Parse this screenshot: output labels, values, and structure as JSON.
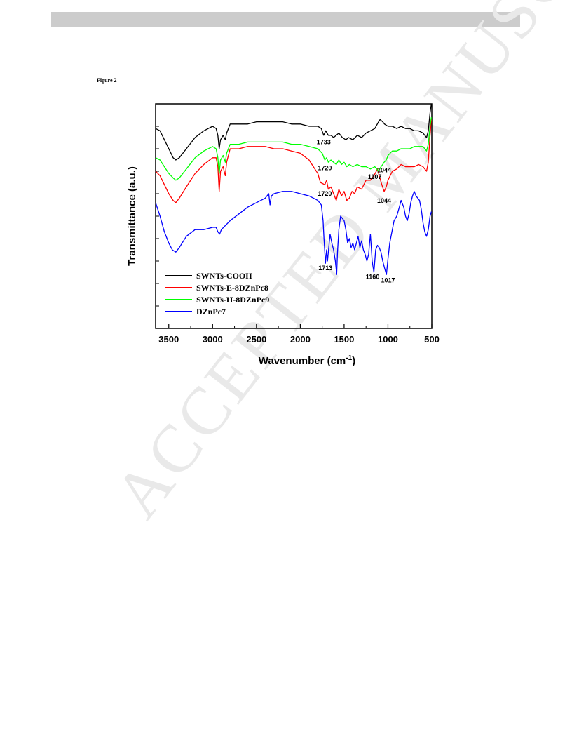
{
  "page": {
    "figure_label": "Figure 2",
    "watermark": "ACCEPTED MANUSCRIPT"
  },
  "chart_data": {
    "type": "line",
    "title": "",
    "xlabel_main": "Wavenumber (cm",
    "xlabel_sup": "-1",
    "xlabel_close": ")",
    "ylabel": "Transmittance (a.u.)",
    "xlim": [
      3650,
      500
    ],
    "ylim": [
      0,
      100
    ],
    "x_reversed": true,
    "grid": false,
    "legend_position": "bottom-left",
    "xticks": [
      3500,
      3000,
      2500,
      2000,
      1500,
      1000,
      500
    ],
    "yticks_labeled": false,
    "series": [
      {
        "name": "SWNTs-COOH",
        "color": "#000000",
        "points": [
          [
            3650,
            89
          ],
          [
            3600,
            88
          ],
          [
            3550,
            84
          ],
          [
            3500,
            80
          ],
          [
            3450,
            76
          ],
          [
            3420,
            75
          ],
          [
            3380,
            76
          ],
          [
            3300,
            80
          ],
          [
            3200,
            85
          ],
          [
            3100,
            88
          ],
          [
            3000,
            90
          ],
          [
            2960,
            89
          ],
          [
            2940,
            86
          ],
          [
            2925,
            80
          ],
          [
            2910,
            84
          ],
          [
            2880,
            86
          ],
          [
            2855,
            84
          ],
          [
            2840,
            87
          ],
          [
            2800,
            91
          ],
          [
            2700,
            91
          ],
          [
            2600,
            91
          ],
          [
            2500,
            92
          ],
          [
            2400,
            92
          ],
          [
            2300,
            92
          ],
          [
            2200,
            92
          ],
          [
            2100,
            91
          ],
          [
            2000,
            91
          ],
          [
            1900,
            90
          ],
          [
            1800,
            90
          ],
          [
            1760,
            89
          ],
          [
            1733,
            86
          ],
          [
            1710,
            88
          ],
          [
            1680,
            86
          ],
          [
            1650,
            86
          ],
          [
            1620,
            85
          ],
          [
            1590,
            86
          ],
          [
            1560,
            87
          ],
          [
            1520,
            85
          ],
          [
            1480,
            84
          ],
          [
            1450,
            85
          ],
          [
            1400,
            84
          ],
          [
            1350,
            86
          ],
          [
            1300,
            85
          ],
          [
            1250,
            87
          ],
          [
            1200,
            88
          ],
          [
            1150,
            89
          ],
          [
            1107,
            92
          ],
          [
            1090,
            93
          ],
          [
            1060,
            92
          ],
          [
            1040,
            91
          ],
          [
            1000,
            90
          ],
          [
            950,
            90
          ],
          [
            900,
            89
          ],
          [
            850,
            90
          ],
          [
            800,
            89
          ],
          [
            750,
            89
          ],
          [
            700,
            88
          ],
          [
            650,
            88
          ],
          [
            600,
            87
          ],
          [
            560,
            85
          ],
          [
            540,
            88
          ],
          [
            520,
            96
          ],
          [
            505,
            100
          ]
        ]
      },
      {
        "name": "SWNTs-E-8DZnPc8",
        "color": "#ff0000",
        "points": [
          [
            3650,
            70
          ],
          [
            3600,
            68
          ],
          [
            3550,
            64
          ],
          [
            3500,
            60
          ],
          [
            3450,
            57
          ],
          [
            3420,
            56
          ],
          [
            3380,
            58
          ],
          [
            3300,
            63
          ],
          [
            3200,
            69
          ],
          [
            3100,
            73
          ],
          [
            3000,
            76
          ],
          [
            2960,
            76
          ],
          [
            2940,
            72
          ],
          [
            2925,
            61
          ],
          [
            2910,
            70
          ],
          [
            2880,
            72
          ],
          [
            2855,
            68
          ],
          [
            2840,
            74
          ],
          [
            2800,
            80
          ],
          [
            2700,
            80
          ],
          [
            2600,
            81
          ],
          [
            2500,
            81
          ],
          [
            2400,
            81
          ],
          [
            2300,
            80
          ],
          [
            2200,
            80
          ],
          [
            2100,
            79
          ],
          [
            2000,
            78
          ],
          [
            1900,
            75
          ],
          [
            1850,
            72
          ],
          [
            1800,
            69
          ],
          [
            1770,
            65
          ],
          [
            1720,
            64
          ],
          [
            1700,
            66
          ],
          [
            1680,
            62
          ],
          [
            1650,
            63
          ],
          [
            1620,
            60
          ],
          [
            1590,
            57
          ],
          [
            1560,
            62
          ],
          [
            1530,
            59
          ],
          [
            1500,
            61
          ],
          [
            1470,
            57
          ],
          [
            1440,
            58
          ],
          [
            1410,
            61
          ],
          [
            1380,
            60
          ],
          [
            1350,
            63
          ],
          [
            1300,
            62
          ],
          [
            1250,
            66
          ],
          [
            1200,
            66
          ],
          [
            1160,
            68
          ],
          [
            1120,
            71
          ],
          [
            1100,
            68
          ],
          [
            1070,
            64
          ],
          [
            1044,
            61
          ],
          [
            1020,
            63
          ],
          [
            1000,
            66
          ],
          [
            950,
            70
          ],
          [
            900,
            71
          ],
          [
            850,
            73
          ],
          [
            800,
            72
          ],
          [
            750,
            72
          ],
          [
            700,
            72
          ],
          [
            650,
            73
          ],
          [
            600,
            72
          ],
          [
            560,
            70
          ],
          [
            540,
            74
          ],
          [
            520,
            86
          ],
          [
            505,
            93
          ]
        ]
      },
      {
        "name": "SWNTs-H-8DZnPc9",
        "color": "#00ff00",
        "points": [
          [
            3650,
            76
          ],
          [
            3600,
            75
          ],
          [
            3550,
            72
          ],
          [
            3500,
            69
          ],
          [
            3450,
            67
          ],
          [
            3420,
            66
          ],
          [
            3380,
            67
          ],
          [
            3300,
            71
          ],
          [
            3200,
            76
          ],
          [
            3100,
            79
          ],
          [
            3000,
            81
          ],
          [
            2960,
            80
          ],
          [
            2940,
            76
          ],
          [
            2925,
            69
          ],
          [
            2910,
            75
          ],
          [
            2880,
            77
          ],
          [
            2855,
            74
          ],
          [
            2840,
            78
          ],
          [
            2800,
            82
          ],
          [
            2700,
            82
          ],
          [
            2600,
            83
          ],
          [
            2500,
            83
          ],
          [
            2400,
            83
          ],
          [
            2300,
            83
          ],
          [
            2200,
            83
          ],
          [
            2100,
            82
          ],
          [
            2000,
            82
          ],
          [
            1900,
            81
          ],
          [
            1800,
            80
          ],
          [
            1750,
            78
          ],
          [
            1720,
            75
          ],
          [
            1700,
            76
          ],
          [
            1680,
            74
          ],
          [
            1650,
            75
          ],
          [
            1620,
            74
          ],
          [
            1590,
            73
          ],
          [
            1560,
            75
          ],
          [
            1530,
            73
          ],
          [
            1500,
            74
          ],
          [
            1470,
            72
          ],
          [
            1440,
            73
          ],
          [
            1400,
            72
          ],
          [
            1350,
            73
          ],
          [
            1300,
            72
          ],
          [
            1250,
            72
          ],
          [
            1200,
            71
          ],
          [
            1150,
            72
          ],
          [
            1107,
            70
          ],
          [
            1080,
            72
          ],
          [
            1060,
            73
          ],
          [
            1044,
            74
          ],
          [
            1020,
            75
          ],
          [
            1000,
            77
          ],
          [
            950,
            79
          ],
          [
            900,
            79
          ],
          [
            850,
            80
          ],
          [
            800,
            80
          ],
          [
            750,
            80
          ],
          [
            700,
            81
          ],
          [
            650,
            81
          ],
          [
            600,
            81
          ],
          [
            560,
            79
          ],
          [
            540,
            82
          ],
          [
            520,
            90
          ],
          [
            505,
            94
          ]
        ]
      },
      {
        "name": "DZnPc7",
        "color": "#0000ff",
        "points": [
          [
            3650,
            56
          ],
          [
            3600,
            50
          ],
          [
            3550,
            43
          ],
          [
            3500,
            38
          ],
          [
            3460,
            35
          ],
          [
            3420,
            34
          ],
          [
            3380,
            36
          ],
          [
            3300,
            41
          ],
          [
            3200,
            44
          ],
          [
            3100,
            44
          ],
          [
            3000,
            45
          ],
          [
            2960,
            45
          ],
          [
            2940,
            43
          ],
          [
            2920,
            42
          ],
          [
            2900,
            44
          ],
          [
            2800,
            48
          ],
          [
            2700,
            51
          ],
          [
            2600,
            54
          ],
          [
            2500,
            56
          ],
          [
            2400,
            58
          ],
          [
            2360,
            60
          ],
          [
            2345,
            55
          ],
          [
            2330,
            59
          ],
          [
            2300,
            60
          ],
          [
            2200,
            61
          ],
          [
            2100,
            61
          ],
          [
            2000,
            60
          ],
          [
            1900,
            59
          ],
          [
            1800,
            57
          ],
          [
            1760,
            55
          ],
          [
            1740,
            48
          ],
          [
            1730,
            40
          ],
          [
            1713,
            29
          ],
          [
            1700,
            35
          ],
          [
            1690,
            30
          ],
          [
            1680,
            34
          ],
          [
            1660,
            42
          ],
          [
            1640,
            38
          ],
          [
            1620,
            35
          ],
          [
            1600,
            30
          ],
          [
            1585,
            24
          ],
          [
            1575,
            34
          ],
          [
            1560,
            44
          ],
          [
            1540,
            50
          ],
          [
            1520,
            49
          ],
          [
            1500,
            48
          ],
          [
            1480,
            44
          ],
          [
            1460,
            38
          ],
          [
            1440,
            40
          ],
          [
            1420,
            36
          ],
          [
            1400,
            38
          ],
          [
            1380,
            35
          ],
          [
            1360,
            38
          ],
          [
            1340,
            41
          ],
          [
            1320,
            36
          ],
          [
            1300,
            39
          ],
          [
            1280,
            35
          ],
          [
            1260,
            33
          ],
          [
            1240,
            30
          ],
          [
            1220,
            33
          ],
          [
            1210,
            38
          ],
          [
            1200,
            42
          ],
          [
            1190,
            36
          ],
          [
            1180,
            30
          ],
          [
            1160,
            25
          ],
          [
            1150,
            30
          ],
          [
            1140,
            35
          ],
          [
            1120,
            37
          ],
          [
            1100,
            36
          ],
          [
            1080,
            34
          ],
          [
            1060,
            30
          ],
          [
            1040,
            27
          ],
          [
            1017,
            24
          ],
          [
            1000,
            31
          ],
          [
            980,
            38
          ],
          [
            950,
            44
          ],
          [
            930,
            48
          ],
          [
            900,
            50
          ],
          [
            870,
            54
          ],
          [
            850,
            57
          ],
          [
            820,
            54
          ],
          [
            800,
            50
          ],
          [
            780,
            48
          ],
          [
            760,
            51
          ],
          [
            740,
            56
          ],
          [
            720,
            59
          ],
          [
            700,
            61
          ],
          [
            680,
            59
          ],
          [
            660,
            58
          ],
          [
            640,
            57
          ],
          [
            620,
            53
          ],
          [
            600,
            47
          ],
          [
            580,
            43
          ],
          [
            560,
            41
          ],
          [
            540,
            44
          ],
          [
            520,
            50
          ],
          [
            505,
            52
          ]
        ]
      }
    ],
    "peak_labels": [
      {
        "text": "1733",
        "x": 1733,
        "y": 82
      },
      {
        "text": "1720",
        "x": 1720,
        "y": 70.5
      },
      {
        "text": "1107",
        "x": 1150,
        "y": 66.5
      },
      {
        "text": "1044",
        "x": 1044,
        "y": 69.5
      },
      {
        "text": "1720",
        "x": 1720,
        "y": 59
      },
      {
        "text": "1044",
        "x": 1044,
        "y": 56
      },
      {
        "text": "1713",
        "x": 1713,
        "y": 26
      },
      {
        "text": "1160",
        "x": 1175,
        "y": 22
      },
      {
        "text": "1017",
        "x": 1000,
        "y": 20.5
      }
    ]
  }
}
